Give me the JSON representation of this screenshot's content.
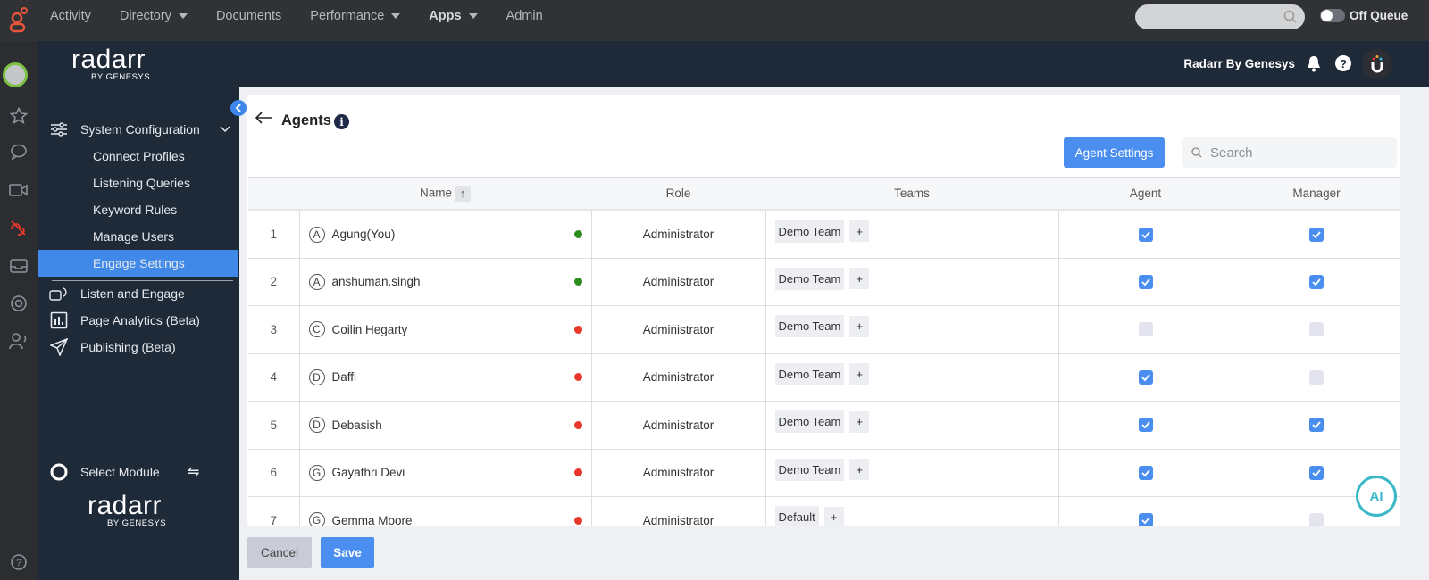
{
  "topnav": {
    "items": [
      {
        "label": "Activity",
        "caret": false,
        "bold": false
      },
      {
        "label": "Directory",
        "caret": true,
        "bold": false
      },
      {
        "label": "Documents",
        "caret": false,
        "bold": false
      },
      {
        "label": "Performance",
        "caret": true,
        "bold": false
      },
      {
        "label": "Apps",
        "caret": true,
        "bold": true
      },
      {
        "label": "Admin",
        "caret": false,
        "bold": false
      }
    ],
    "queue_status": "Off Queue",
    "queue_on": false
  },
  "sidebar": {
    "logo": "radarr",
    "logo_sub": "BY GENESYS",
    "section": "System Configuration",
    "sub_items": [
      "Connect Profiles",
      "Listening Queries",
      "Keyword Rules",
      "Manage Users",
      "Engage Settings"
    ],
    "active_sub": "Engage Settings",
    "items": [
      "Listen and Engage",
      "Page Analytics (Beta)",
      "Publishing (Beta)"
    ],
    "select_module": "Select Module"
  },
  "header": {
    "brand": "Radarr By Genesys"
  },
  "page": {
    "title": "Agents",
    "agent_settings": "Agent Settings",
    "search_placeholder": "Search",
    "cancel": "Cancel",
    "save": "Save",
    "ai_label": "AI"
  },
  "table": {
    "columns": [
      "",
      "Name",
      "Role",
      "Teams",
      "Agent",
      "Manager"
    ],
    "sort_icon": "↑",
    "rows": [
      {
        "n": "1",
        "initial": "A",
        "name": "Agung(You)",
        "online": true,
        "role": "Administrator",
        "team": "Demo Team",
        "agent": true,
        "manager": true
      },
      {
        "n": "2",
        "initial": "A",
        "name": "anshuman.singh",
        "online": true,
        "role": "Administrator",
        "team": "Demo Team",
        "agent": true,
        "manager": true
      },
      {
        "n": "3",
        "initial": "C",
        "name": "Coilin Hegarty",
        "online": false,
        "role": "Administrator",
        "team": "Demo Team",
        "agent": false,
        "manager": false
      },
      {
        "n": "4",
        "initial": "D",
        "name": "Daffi",
        "online": false,
        "role": "Administrator",
        "team": "Demo Team",
        "agent": true,
        "manager": false
      },
      {
        "n": "5",
        "initial": "D",
        "name": "Debasish",
        "online": false,
        "role": "Administrator",
        "team": "Demo Team",
        "agent": true,
        "manager": true
      },
      {
        "n": "6",
        "initial": "G",
        "name": "Gayathri Devi",
        "online": false,
        "role": "Administrator",
        "team": "Demo Team",
        "agent": true,
        "manager": true
      },
      {
        "n": "7",
        "initial": "G",
        "name": "Gemma Moore",
        "online": false,
        "role": "Administrator",
        "team": "Default",
        "agent": true,
        "manager": false
      }
    ]
  },
  "colors": {
    "accent": "#4a8eef",
    "online": "#2e8b1f",
    "offline": "#e8382c",
    "sidebar": "#1f2a38",
    "topbar": "#303236"
  }
}
